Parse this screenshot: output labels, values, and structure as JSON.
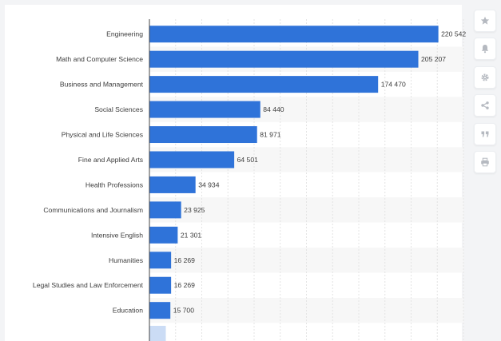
{
  "chart_data": {
    "type": "bar",
    "orientation": "horizontal",
    "categories": [
      "Engineering",
      "Math and Computer Science",
      "Business and Management",
      "Social Sciences",
      "Physical and Life Sciences",
      "Fine and Applied Arts",
      "Health Professions",
      "Communications and Journalism",
      "Intensive English",
      "Humanities",
      "Legal Studies and Law Enforcement",
      "Education"
    ],
    "values": [
      220542,
      205207,
      174470,
      84440,
      81971,
      64501,
      34934,
      23925,
      21301,
      16269,
      16269,
      15700
    ],
    "value_labels": [
      "220 542",
      "205 207",
      "174 470",
      "84 440",
      "81 971",
      "64 501",
      "34 934",
      "23 925",
      "21 301",
      "16 269",
      "16 269",
      "15 700"
    ],
    "xlim": [
      0,
      240000
    ],
    "grid": true,
    "title": "",
    "xlabel": "",
    "ylabel": ""
  },
  "colors": {
    "bar": "#2f73d9",
    "grid": "#e4e4e4",
    "band": "#f7f7f7",
    "axis": "#444444",
    "icon": "#b5b9c0"
  },
  "toolbar": {
    "icons": [
      "star-icon",
      "bell-icon",
      "gear-icon",
      "share-icon",
      "quote-icon",
      "print-icon"
    ]
  }
}
